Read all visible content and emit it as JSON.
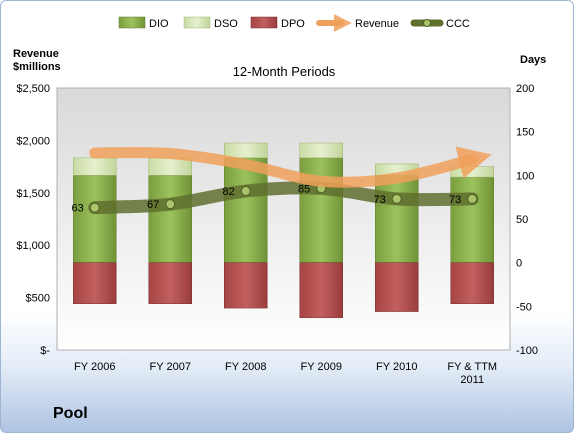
{
  "company": "Pool",
  "chart_data": {
    "type": "bar",
    "title": "12-Month Periods",
    "y_left_label_lines": [
      "Revenue",
      "$millions"
    ],
    "y_right_label": "Days",
    "categories": [
      [
        "FY 2006"
      ],
      [
        "FY 2007"
      ],
      [
        "FY 2008"
      ],
      [
        "FY 2009"
      ],
      [
        "FY 2010"
      ],
      [
        "FY & TTM",
        "2011"
      ]
    ],
    "y_left_ticks": [
      "$-",
      "$500",
      "$1,000",
      "$1,500",
      "$2,000",
      "$2,500"
    ],
    "y_right_ticks": [
      "-100",
      "-50",
      "0",
      "50",
      "100",
      "150",
      "200"
    ],
    "ylim_left": [
      0,
      2500
    ],
    "ylim_right": [
      -100,
      200
    ],
    "legend_position": "top",
    "grid": false,
    "series": [
      {
        "name": "DIO",
        "kind": "stacked-bar",
        "color": "#8cb04e",
        "values": [
          100,
          100,
          120,
          120,
          100,
          98
        ]
      },
      {
        "name": "DSO",
        "kind": "stacked-bar",
        "color": "#d6e5b8",
        "values": [
          20,
          20,
          17,
          17,
          13,
          12
        ]
      },
      {
        "name": "DPO",
        "kind": "negative-bar",
        "color": "#b34e4e",
        "values": [
          -47,
          -47,
          -52,
          -63,
          -56,
          -47
        ]
      },
      {
        "name": "Revenue",
        "kind": "line-left-axis",
        "color": "#f0a05a",
        "values": [
          1310,
          1320,
          1200,
          1620,
          1700,
          1820
        ]
      },
      {
        "name": "CCC",
        "kind": "line-right-axis",
        "color": "#6a7a3a",
        "values": [
          63,
          67,
          82,
          85,
          73,
          73
        ]
      }
    ],
    "ccc_labels": [
      "63",
      "67",
      "82",
      "85",
      "73",
      "73"
    ]
  }
}
